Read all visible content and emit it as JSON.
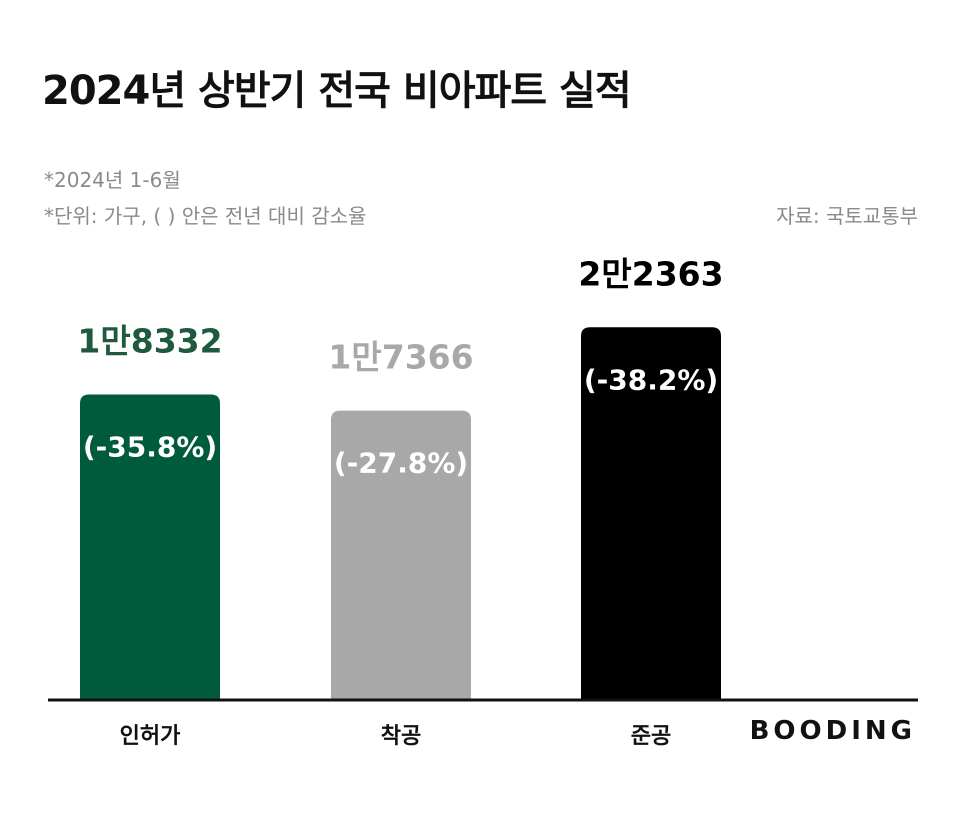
{
  "header": {
    "title": "2024년 상반기 전국 비아파트 실적",
    "note_period": "*2024년 1-6월",
    "note_unit": "*단위: 가구, ( ) 안은 전년 대비 감소율",
    "source": "자료: 국토교통부"
  },
  "brand": "BOODING",
  "chart_data": {
    "type": "bar",
    "categories": [
      "인허가",
      "착공",
      "준공"
    ],
    "values": [
      18332,
      17366,
      22363
    ],
    "value_labels": [
      "1만8332",
      "1만7366",
      "2만2363"
    ],
    "change_labels": [
      "(-35.8%)",
      "(-27.8%)",
      "(-38.2%)"
    ],
    "bar_colors": [
      "#005a3c",
      "#a8a8a8",
      "#000000"
    ],
    "value_label_colors": [
      "#1e5a3e",
      "#a8a8a8",
      "#000000"
    ],
    "ylim": [
      0,
      24000
    ],
    "grid": false,
    "legend": "none"
  }
}
